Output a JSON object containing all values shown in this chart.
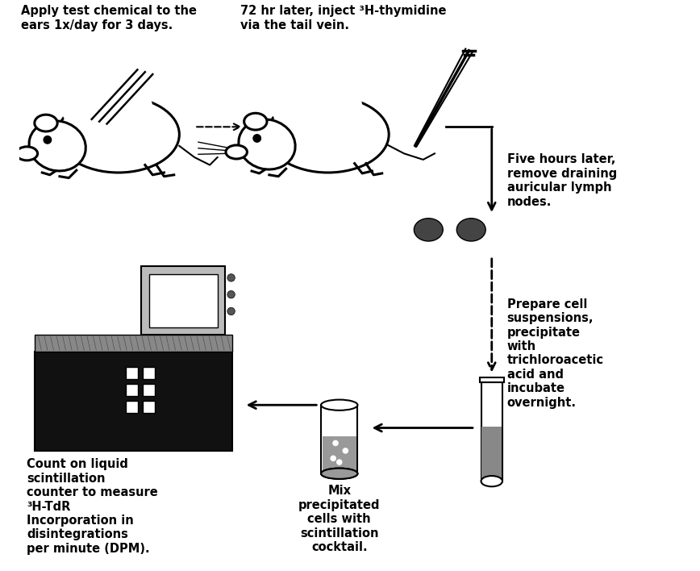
{
  "background_color": "#ffffff",
  "figsize": [
    8.68,
    7.08
  ],
  "dpi": 100,
  "texts": {
    "step1_title": "Apply test chemical to the\nears 1x/day for 3 days.",
    "step2_title": "72 hr later, inject ³H-thymidine\nvia the tail vein.",
    "step3_label": "Five hours later,\nremove draining\nauricular lymph\nnodes.",
    "step4_label": "Prepare cell\nsuspensions,\nprecipitate\nwith\ntrichloroacetic\nacid and\nincubate\novernight.",
    "step5_label": "Mix\nprecipitated\ncells with\nscintillation\ncocktail.",
    "step6_label": "Count on liquid\nscintillation\ncounter to measure\n³H-TdR\nIncorporation in\ndisintegrations\nper minute (DPM)."
  },
  "colors": {
    "machine_dark": "#111111",
    "machine_top": "#666666",
    "machine_screen_body": "#cccccc",
    "machine_screen_inner": "#eeeeee",
    "node_dark": "#444444",
    "tube_liquid": "#888888",
    "vial_liquid": "#999999"
  }
}
